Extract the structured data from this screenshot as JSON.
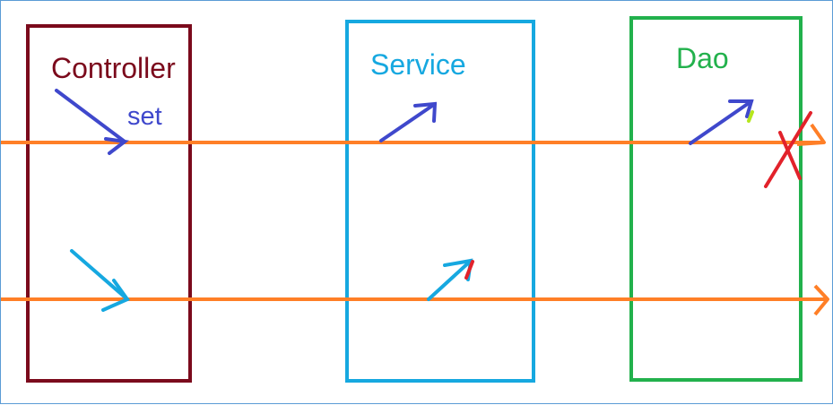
{
  "diagram": {
    "boxes": {
      "controller": {
        "label": "Controller",
        "color": "#7b0a1c"
      },
      "service": {
        "label": "Service",
        "color": "#16a8e0"
      },
      "dao": {
        "label": "Dao",
        "color": "#22b14c"
      }
    },
    "annotations": {
      "controller_note": {
        "text": "set",
        "color": "#3f48cc"
      }
    },
    "colors": {
      "flow_line": "#ff7f27",
      "arrow_blue": "#3f48cc",
      "arrow_cyan": "#16a8e0",
      "cross": "#e2222b",
      "tick_green": "#b5e61d",
      "border": "#5b9bd5"
    }
  }
}
